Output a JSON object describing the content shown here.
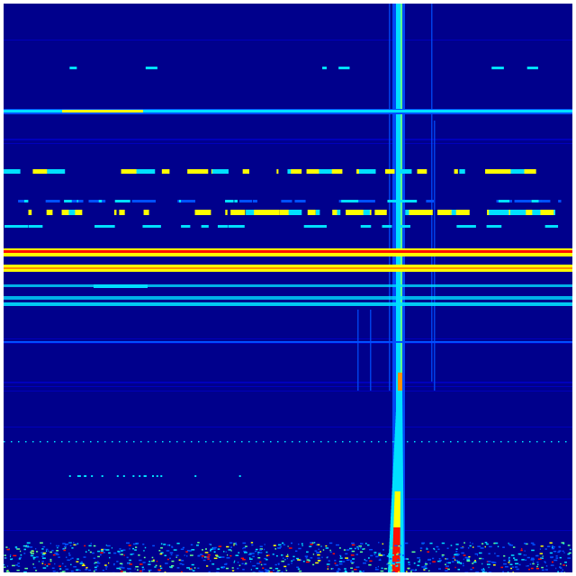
{
  "spectrogram": {
    "colormap": "jet",
    "colors": {
      "background": "#00008c",
      "low": "#0000c8",
      "mid_blue": "#0050ff",
      "cyan": "#00e0ff",
      "green": "#60ff90",
      "yellow": "#ffff00",
      "orange": "#ff9000",
      "red": "#ff1000"
    }
  }
}
